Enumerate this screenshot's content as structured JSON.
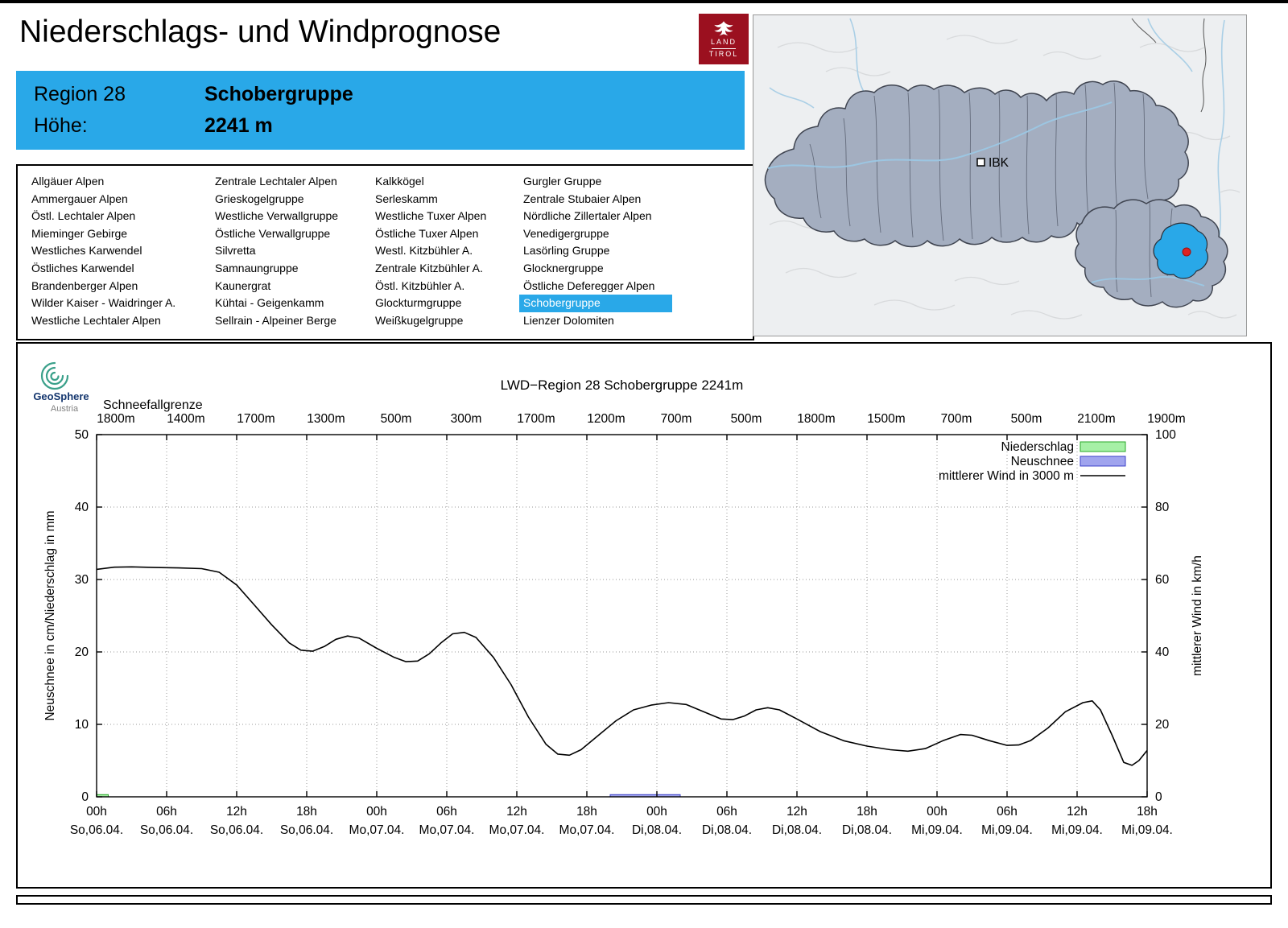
{
  "page": {
    "title": "Niederschlags- und Windprognose"
  },
  "logo": {
    "line1": "LAND",
    "line2": "TIROL"
  },
  "colors": {
    "accent": "#29a8e8",
    "logo_red": "#9b101f"
  },
  "region_info": {
    "region_label": "Region 28",
    "region_name": "Schobergruppe",
    "altitude_label": "Höhe:",
    "altitude_value": "2241 m"
  },
  "map": {
    "city_label": "IBK"
  },
  "region_list": {
    "selected": "Schobergruppe",
    "columns": [
      [
        "Allgäuer Alpen",
        "Ammergauer Alpen",
        "Östl. Lechtaler Alpen",
        "Mieminger Gebirge",
        "Westliches Karwendel",
        "Östliches Karwendel",
        "Brandenberger Alpen",
        "Wilder Kaiser - Waidringer A.",
        "Westliche Lechtaler Alpen"
      ],
      [
        "Zentrale Lechtaler Alpen",
        "Grieskogelgruppe",
        "Westliche Verwallgruppe",
        "Östliche Verwallgruppe",
        "Silvretta",
        "Samnaungruppe",
        "Kaunergrat",
        "Kühtai - Geigenkamm",
        "Sellrain - Alpeiner Berge"
      ],
      [
        "Kalkkögel",
        "Serleskamm",
        "Westliche Tuxer Alpen",
        "Östliche Tuxer Alpen",
        "Westl. Kitzbühler A.",
        "Zentrale Kitzbühler A.",
        "Östl. Kitzbühler A.",
        "Glockturmgruppe",
        "Weißkugelgruppe"
      ],
      [
        "Gurgler Gruppe",
        "Zentrale Stubaier Alpen",
        "Nördliche Zillertaler Alpen",
        "Venedigergruppe",
        "Lasörling Gruppe",
        "Glocknergruppe",
        "Östliche Deferegger Alpen",
        "Schobergruppe",
        "Lienzer Dolomiten"
      ]
    ]
  },
  "chart": {
    "brand": {
      "name": "GeoSphere",
      "sub": "Austria"
    },
    "title": "LWD−Region 28 Schobergruppe 2241m",
    "snowline": {
      "label": "Schneefallgrenze",
      "values": [
        "1800m",
        "1400m",
        "1700m",
        "1300m",
        "500m",
        "300m",
        "1700m",
        "1200m",
        "700m",
        "500m",
        "1800m",
        "1500m",
        "700m",
        "500m",
        "2100m",
        "1900m"
      ]
    },
    "legend": [
      {
        "label": "Niederschlag",
        "type": "box",
        "fill": "#a6f0a6",
        "stroke": "#28a828"
      },
      {
        "label": "Neuschnee",
        "type": "box",
        "fill": "#a0a4ee",
        "stroke": "#3c42c8"
      },
      {
        "label": "mittlerer Wind in 3000 m",
        "type": "line",
        "stroke": "#000000"
      }
    ],
    "y_left": {
      "label": "Neuschnee in cm/Niederschlag in mm",
      "min": 0,
      "max": 50,
      "ticks": [
        0,
        10,
        20,
        30,
        40,
        50
      ]
    },
    "y_right": {
      "label": "mittlerer Wind in km/h",
      "min": 0,
      "max": 100,
      "ticks": [
        0,
        20,
        40,
        60,
        80,
        100
      ]
    },
    "x_ticks": [
      {
        "time": "00h",
        "date": "So,06.04."
      },
      {
        "time": "06h",
        "date": "So,06.04."
      },
      {
        "time": "12h",
        "date": "So,06.04."
      },
      {
        "time": "18h",
        "date": "So,06.04."
      },
      {
        "time": "00h",
        "date": "Mo,07.04."
      },
      {
        "time": "06h",
        "date": "Mo,07.04."
      },
      {
        "time": "12h",
        "date": "Mo,07.04."
      },
      {
        "time": "18h",
        "date": "Mo,07.04."
      },
      {
        "time": "00h",
        "date": "Di,08.04."
      },
      {
        "time": "06h",
        "date": "Di,08.04."
      },
      {
        "time": "12h",
        "date": "Di,08.04."
      },
      {
        "time": "18h",
        "date": "Di,08.04."
      },
      {
        "time": "00h",
        "date": "Mi,09.04."
      },
      {
        "time": "06h",
        "date": "Mi,09.04."
      },
      {
        "time": "12h",
        "date": "Mi,09.04."
      },
      {
        "time": "18h",
        "date": "Mi,09.04."
      }
    ]
  },
  "chart_data": {
    "type": "line",
    "title": "LWD−Region 28 Schobergruppe 2241m",
    "x_unit": "hours from So 06.04. 00h",
    "x_range": [
      0,
      90
    ],
    "ylim_left": [
      0,
      50
    ],
    "ylim_right": [
      0,
      100
    ],
    "grid": true,
    "legend_position": "top-right",
    "snowline_values_m": [
      1800,
      1400,
      1700,
      1300,
      500,
      300,
      1700,
      1200,
      700,
      500,
      1800,
      1500,
      700,
      500,
      2100,
      1900
    ],
    "series": [
      {
        "name": "mittlerer Wind in 3000 m",
        "axis": "right",
        "unit": "km/h",
        "type": "line",
        "x": [
          0,
          1.5,
          3,
          5,
          7,
          9,
          10.5,
          12,
          13.5,
          15,
          16.5,
          17.5,
          18.5,
          19.5,
          20.5,
          21.5,
          22.5,
          24,
          25.5,
          26.5,
          27.5,
          28.5,
          29.5,
          30.5,
          31.5,
          32.5,
          34,
          35.5,
          37,
          38.5,
          39.5,
          40.5,
          41.5,
          43,
          44.5,
          46,
          47.5,
          49,
          50.5,
          52,
          53.5,
          54.5,
          55.5,
          56.5,
          57.5,
          58.5,
          60,
          62,
          64,
          66,
          68,
          69.5,
          71,
          72.5,
          74,
          75,
          76.5,
          78,
          79,
          80,
          81.5,
          83,
          84.5,
          85.3,
          86,
          87,
          88,
          88.7,
          89.3,
          90
        ],
        "y": [
          62.8,
          63.4,
          63.5,
          63.3,
          63.2,
          63.0,
          62.0,
          58.5,
          53,
          47.5,
          42.5,
          40.5,
          40.2,
          41.5,
          43.5,
          44.4,
          43.8,
          41,
          38.5,
          37.3,
          37.5,
          39.5,
          42.5,
          45,
          45.4,
          44,
          38.5,
          31,
          22,
          14.5,
          11.8,
          11.5,
          13,
          17,
          21,
          24,
          25.3,
          26,
          25.5,
          23.5,
          21.5,
          21.3,
          22.3,
          24,
          24.6,
          24,
          21.5,
          18,
          15.5,
          14,
          13,
          12.6,
          13.3,
          15.5,
          17.2,
          17,
          15.5,
          14.2,
          14.3,
          15.5,
          19,
          23.5,
          26,
          26.5,
          24,
          17,
          9.5,
          8.7,
          10,
          12.8
        ]
      },
      {
        "name": "Niederschlag",
        "axis": "left",
        "unit": "mm",
        "type": "bar",
        "bars": [
          {
            "x0": 0,
            "x1": 1,
            "value": 0.3
          }
        ]
      },
      {
        "name": "Neuschnee",
        "axis": "left",
        "unit": "cm",
        "type": "bar",
        "bars": [
          {
            "x0": 44,
            "x1": 50,
            "value": 0.3
          }
        ]
      }
    ]
  }
}
